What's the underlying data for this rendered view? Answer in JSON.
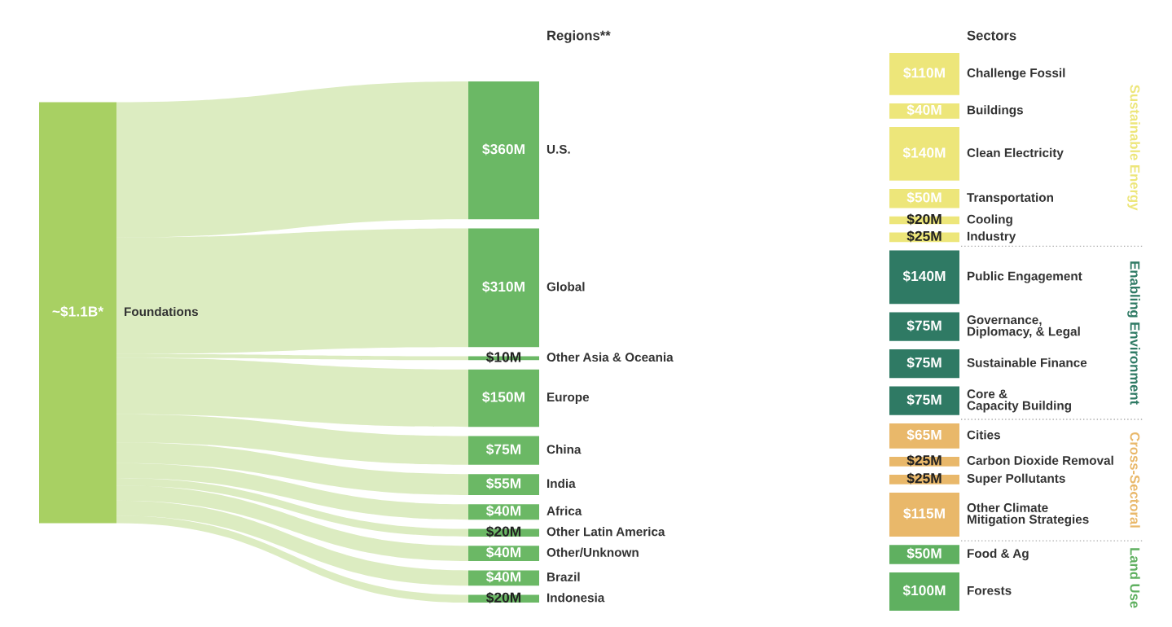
{
  "chart_data": {
    "type": "other",
    "categories": [
      "Foundations",
      "U.S.",
      "Global",
      "Other Asia & Oceania",
      "Europe",
      "China",
      "India",
      "Africa",
      "Other Latin America",
      "Other/Unknown",
      "Brazil",
      "Indonesia",
      "Challenge Fossil",
      "Buildings",
      "Clean Electricity",
      "Transportation",
      "Cooling",
      "Industry",
      "Public Engagement",
      "Governance,\nDiplomacy, & Legal",
      "Sustainable Finance",
      "Core &\nCapacity Building",
      "Cities",
      "Carbon Dioxide Removal",
      "Super Pollutants",
      "Other Climate\nMitigation Strategies",
      "Food & Ag",
      "Forests"
    ],
    "series": [
      {
        "values": [
          1100000000,
          null,
          null,
          null,
          null,
          null,
          null,
          null,
          null,
          null,
          null,
          null,
          null,
          null,
          null,
          null,
          null,
          null,
          null,
          null,
          null,
          null,
          null,
          null,
          null,
          null,
          null,
          null
        ],
        "value_labels": [
          "~$1.1B*",
          null,
          null,
          null,
          null,
          null,
          null,
          null,
          null,
          null,
          null,
          null,
          null,
          null,
          null,
          null,
          null,
          null,
          null,
          null,
          null,
          null,
          null,
          null,
          null,
          null,
          null,
          null
        ],
        "color": "#a8d063"
      },
      {
        "name": "Regions**",
        "values": [
          null,
          360000000,
          310000000,
          10000000,
          150000000,
          75000000,
          55000000,
          40000000,
          20000000,
          40000000,
          40000000,
          20000000,
          null,
          null,
          null,
          null,
          null,
          null,
          null,
          null,
          null,
          null,
          null,
          null,
          null,
          null,
          null,
          null
        ],
        "value_labels": [
          null,
          "$360M",
          "$310M",
          "$10M",
          "$150M",
          "$75M",
          "$55M",
          "$40M",
          "$20M",
          "$40M",
          "$40M",
          "$20M",
          null,
          null,
          null,
          null,
          null,
          null,
          null,
          null,
          null,
          null,
          null,
          null,
          null,
          null,
          null,
          null
        ],
        "color": "#6bb865"
      },
      {
        "name": "Sustainable Energy",
        "values": [
          null,
          null,
          null,
          null,
          null,
          null,
          null,
          null,
          null,
          null,
          null,
          null,
          110000000,
          40000000,
          140000000,
          50000000,
          20000000,
          25000000,
          null,
          null,
          null,
          null,
          null,
          null,
          null,
          null,
          null,
          null
        ],
        "value_labels": [
          null,
          null,
          null,
          null,
          null,
          null,
          null,
          null,
          null,
          null,
          null,
          null,
          "$110M",
          "$40M",
          "$140M",
          "$50M",
          "$20M",
          "$25M",
          null,
          null,
          null,
          null,
          null,
          null,
          null,
          null,
          null,
          null
        ],
        "color": "#ede67a"
      },
      {
        "name": "Enabling Environment",
        "values": [
          null,
          null,
          null,
          null,
          null,
          null,
          null,
          null,
          null,
          null,
          null,
          null,
          null,
          null,
          null,
          null,
          null,
          null,
          140000000,
          75000000,
          75000000,
          75000000,
          null,
          null,
          null,
          null,
          null,
          null
        ],
        "value_labels": [
          null,
          null,
          null,
          null,
          null,
          null,
          null,
          null,
          null,
          null,
          null,
          null,
          null,
          null,
          null,
          null,
          null,
          null,
          "$140M",
          "$75M",
          "$75M",
          "$75M",
          null,
          null,
          null,
          null,
          null,
          null
        ],
        "color": "#2f7a64"
      },
      {
        "name": "Cross-Sectoral",
        "values": [
          null,
          null,
          null,
          null,
          null,
          null,
          null,
          null,
          null,
          null,
          null,
          null,
          null,
          null,
          null,
          null,
          null,
          null,
          null,
          null,
          null,
          null,
          65000000,
          25000000,
          25000000,
          115000000,
          null,
          null
        ],
        "value_labels": [
          null,
          null,
          null,
          null,
          null,
          null,
          null,
          null,
          null,
          null,
          null,
          null,
          null,
          null,
          null,
          null,
          null,
          null,
          null,
          null,
          null,
          null,
          "$65M",
          "$25M",
          "$25M",
          "$115M",
          null,
          null
        ],
        "color": "#e9b86a"
      },
      {
        "name": "Land Use",
        "values": [
          null,
          null,
          null,
          null,
          null,
          null,
          null,
          null,
          null,
          null,
          null,
          null,
          null,
          null,
          null,
          null,
          null,
          null,
          null,
          null,
          null,
          null,
          null,
          null,
          null,
          null,
          50000000,
          100000000
        ],
        "value_labels": [
          null,
          null,
          null,
          null,
          null,
          null,
          null,
          null,
          null,
          null,
          null,
          null,
          null,
          null,
          null,
          null,
          null,
          null,
          null,
          null,
          null,
          null,
          null,
          null,
          null,
          null,
          "$50M",
          "$100M"
        ],
        "color": "#5fb060"
      }
    ],
    "annotations": [
      "Sectors"
    ]
  }
}
